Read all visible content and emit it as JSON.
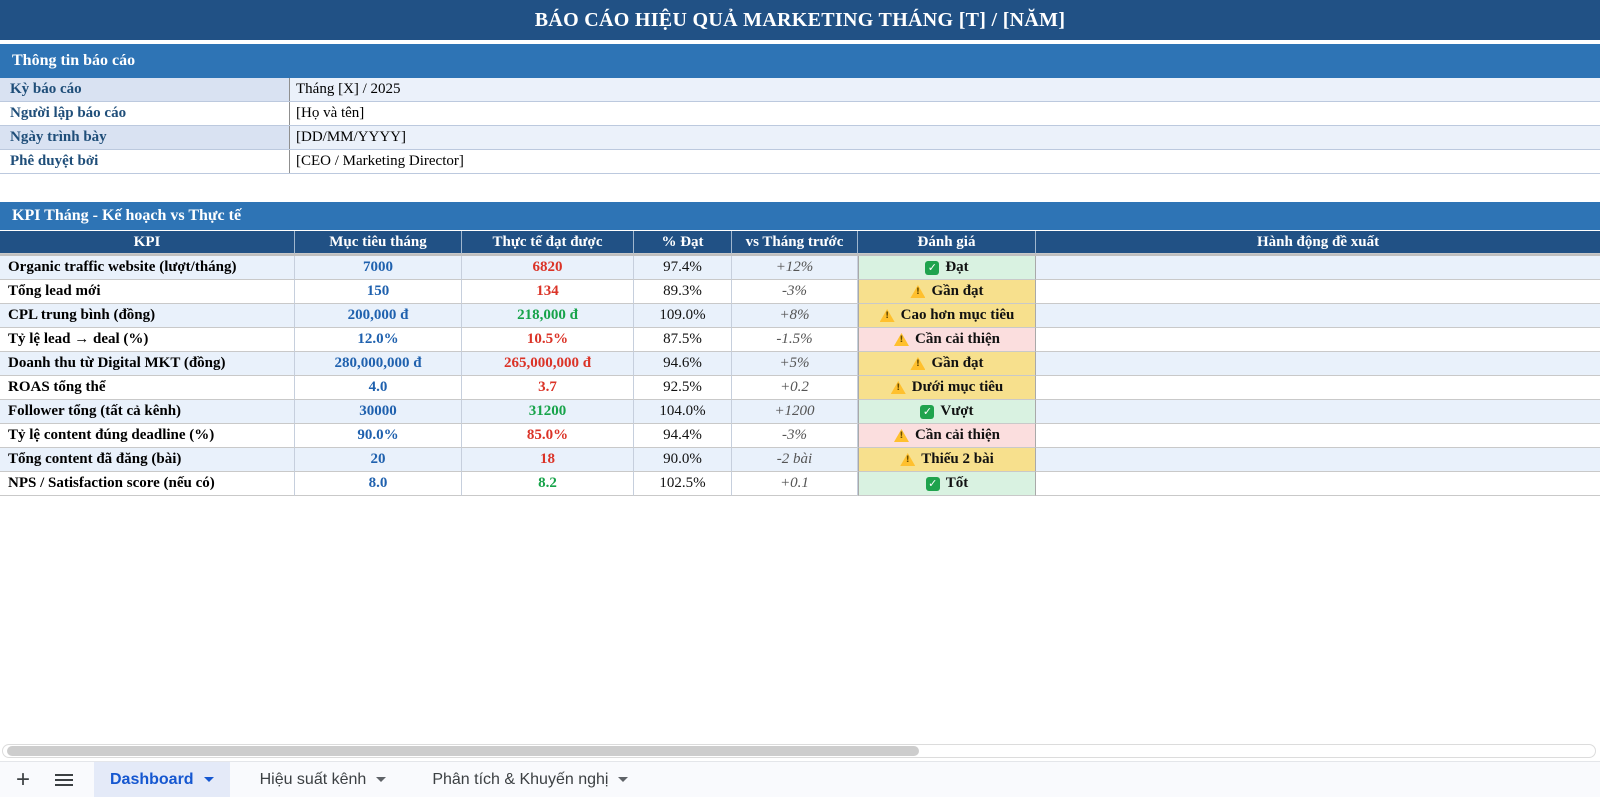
{
  "title": "BÁO CÁO HIỆU QUẢ MARKETING THÁNG [T] / [NĂM]",
  "info": {
    "header": "Thông tin báo cáo",
    "rows": [
      {
        "label": "Kỳ báo cáo",
        "value": "Tháng [X] / 2025"
      },
      {
        "label": "Người lập báo cáo",
        "value": "[Họ và tên]"
      },
      {
        "label": "Ngày trình bày",
        "value": "[DD/MM/YYYY]"
      },
      {
        "label": "Phê duyệt bởi",
        "value": "[CEO / Marketing Director]"
      }
    ]
  },
  "kpi": {
    "header": "KPI Tháng - Kế hoạch vs Thực tế",
    "columns": [
      "KPI",
      "Mục tiêu tháng",
      "Thực tế đạt được",
      "% Đạt",
      "vs Tháng trước",
      "Đánh giá",
      "Hành động đề xuất"
    ],
    "rows": [
      {
        "kpi": "Organic traffic website (lượt/tháng)",
        "target": "7000",
        "actual": "6820",
        "actual_tone": "bad",
        "pct": "97.4%",
        "vs_prev": "+12%",
        "eval": "Đạt",
        "eval_tone": "ok",
        "action": ""
      },
      {
        "kpi": "Tổng lead mới",
        "target": "150",
        "actual": "134",
        "actual_tone": "bad",
        "pct": "89.3%",
        "vs_prev": "-3%",
        "eval": "Gần đạt",
        "eval_tone": "warn",
        "action": ""
      },
      {
        "kpi": "CPL trung bình (đồng)",
        "target": "200,000 đ",
        "actual": "218,000 đ",
        "actual_tone": "good",
        "pct": "109.0%",
        "vs_prev": "+8%",
        "eval": "Cao hơn mục tiêu",
        "eval_tone": "warn",
        "action": ""
      },
      {
        "kpi": "Tỷ lệ lead → deal (%)",
        "target": "12.0%",
        "actual": "10.5%",
        "actual_tone": "bad",
        "pct": "87.5%",
        "vs_prev": "-1.5%",
        "eval": "Cần cải thiện",
        "eval_tone": "bad",
        "action": ""
      },
      {
        "kpi": "Doanh thu từ Digital MKT (đồng)",
        "target": "280,000,000 đ",
        "actual": "265,000,000 đ",
        "actual_tone": "bad",
        "pct": "94.6%",
        "vs_prev": "+5%",
        "eval": "Gần đạt",
        "eval_tone": "warn",
        "action": ""
      },
      {
        "kpi": "ROAS tổng thể",
        "target": "4.0",
        "actual": "3.7",
        "actual_tone": "bad",
        "pct": "92.5%",
        "vs_prev": "+0.2",
        "eval": "Dưới mục tiêu",
        "eval_tone": "warn",
        "action": ""
      },
      {
        "kpi": "Follower tổng (tất cả kênh)",
        "target": "30000",
        "actual": "31200",
        "actual_tone": "good",
        "pct": "104.0%",
        "vs_prev": "+1200",
        "eval": "Vượt",
        "eval_tone": "ok",
        "action": ""
      },
      {
        "kpi": "Tỷ lệ content đúng deadline (%)",
        "target": "90.0%",
        "actual": "85.0%",
        "actual_tone": "bad",
        "pct": "94.4%",
        "vs_prev": "-3%",
        "eval": "Cần cải thiện",
        "eval_tone": "bad",
        "action": ""
      },
      {
        "kpi": "Tổng content đã đăng (bài)",
        "target": "20",
        "actual": "18",
        "actual_tone": "bad",
        "pct": "90.0%",
        "vs_prev": "-2 bài",
        "eval": "Thiếu 2 bài",
        "eval_tone": "warn",
        "action": ""
      },
      {
        "kpi": "NPS / Satisfaction score (nếu có)",
        "target": "8.0",
        "actual": "8.2",
        "actual_tone": "good",
        "pct": "102.5%",
        "vs_prev": "+0.1",
        "eval": "Tốt",
        "eval_tone": "ok",
        "action": ""
      }
    ]
  },
  "colors": {
    "title_bar": "#215185",
    "section_band": "#2E74B5",
    "table_header": "#215185",
    "stripe_blue": "#E9F1FB",
    "target_blue": "#1F61AE",
    "bad_red": "#DB3327",
    "good_green": "#17A34A",
    "eval_ok_bg": "#D9F2E1",
    "eval_warn_bg": "#F7E08D",
    "eval_bad_bg": "#FBDEDE"
  },
  "tabbar": {
    "tabs": [
      {
        "label": "Dashboard",
        "active": true
      },
      {
        "label": "Hiệu suất kênh",
        "active": false
      },
      {
        "label": "Phân tích & Khuyến nghị",
        "active": false
      }
    ]
  }
}
